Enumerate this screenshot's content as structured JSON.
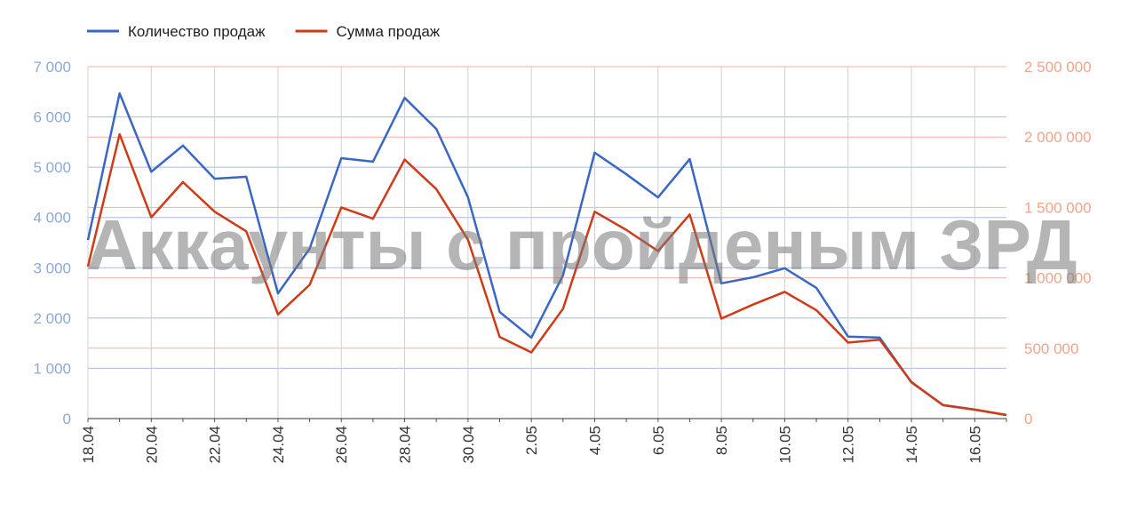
{
  "chart_data": {
    "type": "line",
    "watermark": "Аккаунты с пройденым ЗРД",
    "categories": [
      "18.04",
      null,
      "20.04",
      null,
      "22.04",
      null,
      "24.04",
      null,
      "26.04",
      null,
      "28.04",
      null,
      "30.04",
      null,
      "2.05",
      null,
      "4.05",
      null,
      "6.05",
      null,
      "8.05",
      null,
      "10.05",
      null,
      "12.05",
      null,
      "14.05",
      null,
      "16.05",
      null
    ],
    "series": [
      {
        "name": "Количество продаж",
        "color": "#3a66c4",
        "axis": "y",
        "values": [
          3550,
          6470,
          4910,
          5430,
          4770,
          4810,
          2490,
          3380,
          5180,
          5110,
          6380,
          5760,
          4400,
          2120,
          1610,
          2850,
          5290,
          4860,
          4400,
          5160,
          2690,
          2810,
          2990,
          2600,
          1630,
          1610,
          720,
          270,
          180,
          70
        ]
      },
      {
        "name": "Сумма продаж",
        "color": "#d03a17",
        "axis": "y2",
        "values": [
          1080000,
          2020000,
          1430000,
          1680000,
          1470000,
          1330000,
          740000,
          950000,
          1500000,
          1420000,
          1840000,
          1630000,
          1270000,
          580000,
          470000,
          780000,
          1470000,
          1340000,
          1190000,
          1450000,
          710000,
          810000,
          900000,
          770000,
          540000,
          560000,
          260000,
          95000,
          63000,
          25000
        ]
      }
    ],
    "ylim": [
      0,
      7000
    ],
    "yticks": [
      0,
      {
        "value": 1000,
        "label": "1 000"
      },
      {
        "value": 2000,
        "label": "2 000"
      },
      {
        "value": 3000,
        "label": "3 000"
      },
      {
        "value": 4000,
        "label": "4 000"
      },
      {
        "value": 5000,
        "label": "5 000"
      },
      {
        "value": 6000,
        "label": "6 000"
      },
      {
        "value": 7000,
        "label": "7 000"
      }
    ],
    "y2lim": [
      0,
      2500000
    ],
    "y2ticks": [
      0,
      {
        "value": 500000,
        "label": "500 000"
      },
      {
        "value": 1000000,
        "label": "1 000 000"
      },
      {
        "value": 1500000,
        "label": "1 500 000"
      },
      {
        "value": 2000000,
        "label": "2 000 000"
      },
      {
        "value": 2500000,
        "label": "2 500 000"
      }
    ],
    "grid": true,
    "legend": "top-left"
  }
}
